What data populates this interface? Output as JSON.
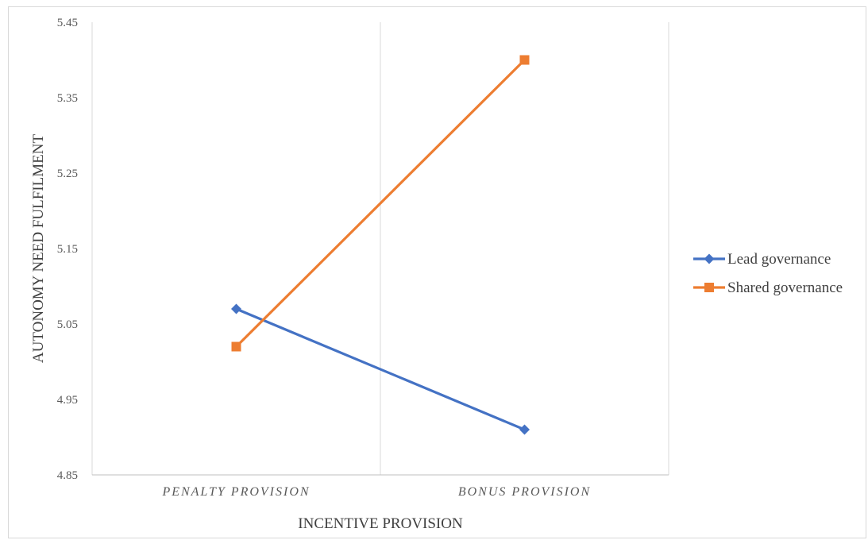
{
  "chart_data": {
    "type": "line",
    "title": "",
    "xlabel": "INCENTIVE PROVISION",
    "ylabel": "AUTONOMY NEED FULFILMENT",
    "categories": [
      "PENALTY PROVISION",
      "BONUS PROVISION"
    ],
    "ylim": [
      4.85,
      5.45
    ],
    "yticks": [
      "4.85",
      "4.95",
      "5.05",
      "5.15",
      "5.25",
      "5.35",
      "5.45"
    ],
    "grid": "vertical",
    "legend_position": "right",
    "series": [
      {
        "name": "Lead governance",
        "values": [
          5.07,
          4.91
        ],
        "color": "#4472c4",
        "marker": "diamond"
      },
      {
        "name": "Shared governance",
        "values": [
          5.02,
          5.4
        ],
        "color": "#ed7d31",
        "marker": "square"
      }
    ]
  }
}
